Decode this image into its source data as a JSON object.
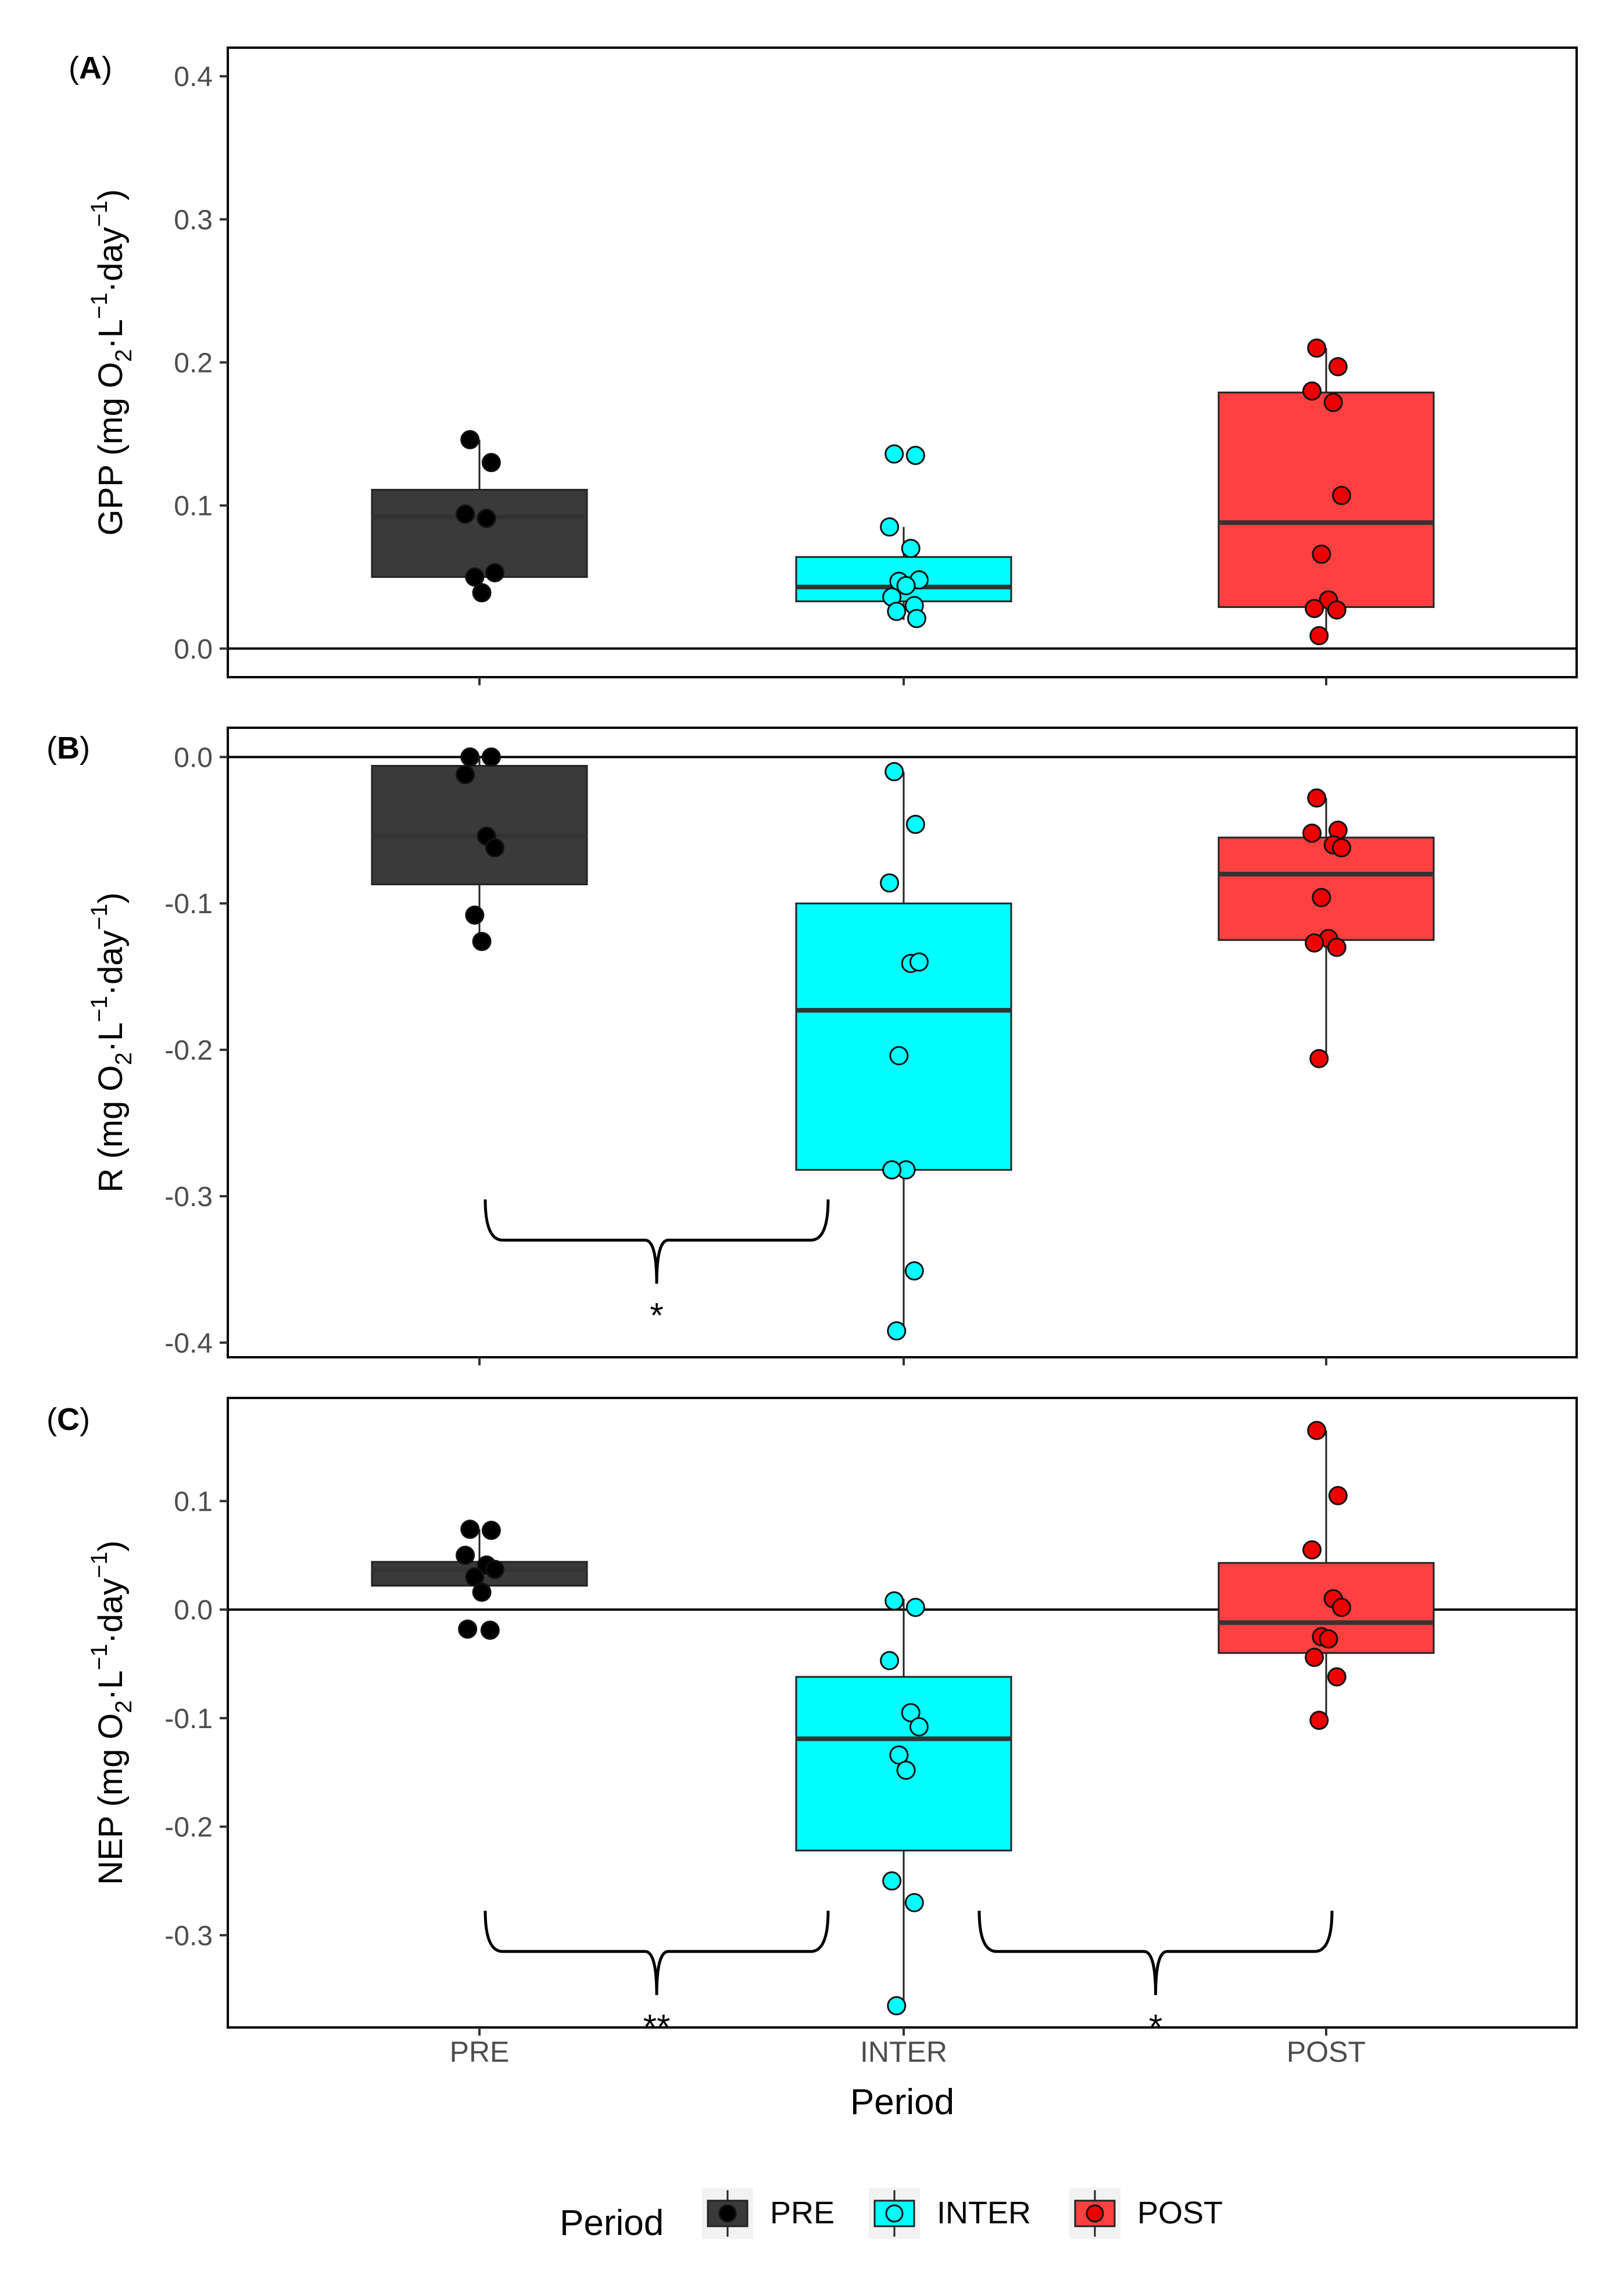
{
  "chart_data": [
    {
      "panel_label": "A",
      "type": "boxplot",
      "ylabel": "GPP (mg O₂·L⁻¹·day⁻¹)",
      "ylabel_parts": {
        "pre": "GPP (mg O",
        "sub": "2",
        "mid1": "·L",
        "sup1": "−1",
        "mid2": "·day",
        "sup2": "−1",
        "post": ")"
      },
      "ylim": [
        -0.02,
        0.42
      ],
      "yticks": [
        0.0,
        0.1,
        0.2,
        0.3,
        0.4
      ],
      "ytick_labels": [
        "0.0",
        "0.1",
        "0.2",
        "0.3",
        "0.4"
      ],
      "ref_line": 0,
      "categories": [
        "PRE",
        "INTER",
        "POST"
      ],
      "boxes": [
        {
          "group": "PRE",
          "q1": 0.05,
          "median": 0.092,
          "q3": 0.111,
          "whisker_low": 0.04,
          "whisker_high": 0.146
        },
        {
          "group": "INTER",
          "q1": 0.033,
          "median": 0.043,
          "q3": 0.064,
          "whisker_low": 0.02,
          "whisker_high": 0.085
        },
        {
          "group": "POST",
          "q1": 0.029,
          "median": 0.088,
          "q3": 0.179,
          "whisker_low": 0.009,
          "whisker_high": 0.21
        }
      ],
      "points": [
        {
          "group": "PRE",
          "y": [
            0.146,
            0.13,
            0.094,
            0.091,
            0.053,
            0.05,
            0.039
          ]
        },
        {
          "group": "INTER",
          "y": [
            0.136,
            0.135,
            0.085,
            0.07,
            0.048,
            0.047,
            0.044,
            0.036,
            0.03,
            0.026,
            0.021
          ]
        },
        {
          "group": "POST",
          "y": [
            0.21,
            0.197,
            0.18,
            0.172,
            0.107,
            0.066,
            0.034,
            0.028,
            0.027,
            0.009
          ]
        }
      ],
      "significance": []
    },
    {
      "panel_label": "B",
      "type": "boxplot",
      "ylabel": "R (mg O₂·L⁻¹·day⁻¹)",
      "ylabel_parts": {
        "pre": "R (mg O",
        "sub": "2",
        "mid1": "·L",
        "sup1": "−1",
        "mid2": "·day",
        "sup2": "−1",
        "post": ")"
      },
      "ylim": [
        -0.41,
        0.02
      ],
      "yticks": [
        0.0,
        -0.1,
        -0.2,
        -0.3,
        -0.4
      ],
      "ytick_labels": [
        "0.0",
        "-0.1",
        "-0.2",
        "-0.3",
        "-0.4"
      ],
      "ref_line": 0,
      "categories": [
        "PRE",
        "INTER",
        "POST"
      ],
      "boxes": [
        {
          "group": "PRE",
          "q1": -0.087,
          "median": -0.054,
          "q3": -0.006,
          "whisker_low": -0.127,
          "whisker_high": 0.0
        },
        {
          "group": "INTER",
          "q1": -0.282,
          "median": -0.173,
          "q3": -0.1,
          "whisker_low": -0.393,
          "whisker_high": -0.01
        },
        {
          "group": "POST",
          "q1": -0.125,
          "median": -0.08,
          "q3": -0.055,
          "whisker_low": -0.206,
          "whisker_high": -0.028
        }
      ],
      "points": [
        {
          "group": "PRE",
          "y": [
            0.0,
            0.0,
            -0.012,
            -0.054,
            -0.062,
            -0.108,
            -0.126
          ]
        },
        {
          "group": "INTER",
          "y": [
            -0.01,
            -0.046,
            -0.086,
            -0.141,
            -0.14,
            -0.204,
            -0.282,
            -0.282,
            -0.351,
            -0.392
          ]
        },
        {
          "group": "POST",
          "y": [
            -0.028,
            -0.05,
            -0.052,
            -0.06,
            -0.062,
            -0.096,
            -0.124,
            -0.127,
            -0.13,
            -0.206
          ]
        }
      ],
      "significance": [
        {
          "from": "PRE",
          "to": "INTER",
          "level": -0.33,
          "label": "*"
        }
      ]
    },
    {
      "panel_label": "C",
      "type": "boxplot",
      "ylabel": "NEP (mg O₂·L⁻¹·day⁻¹)",
      "ylabel_parts": {
        "pre": "NEP (mg O",
        "sub": "2",
        "mid1": "·L",
        "sup1": "−1",
        "mid2": "·day",
        "sup2": "−1",
        "post": ")"
      },
      "ylim": [
        -0.385,
        0.195
      ],
      "yticks": [
        0.1,
        0.0,
        -0.1,
        -0.2,
        -0.3
      ],
      "ytick_labels": [
        "0.1",
        "0.0",
        "-0.1",
        "-0.2",
        "-0.3"
      ],
      "ref_line": 0,
      "categories": [
        "PRE",
        "INTER",
        "POST"
      ],
      "boxes": [
        {
          "group": "PRE",
          "q1": 0.022,
          "median": 0.037,
          "q3": 0.044,
          "whisker_low": 0.016,
          "whisker_high": 0.074
        },
        {
          "group": "INTER",
          "q1": -0.222,
          "median": -0.119,
          "q3": -0.062,
          "whisker_low": -0.365,
          "whisker_high": 0.01
        },
        {
          "group": "POST",
          "q1": -0.04,
          "median": -0.012,
          "q3": 0.043,
          "whisker_low": -0.102,
          "whisker_high": 0.165
        }
      ],
      "points": [
        {
          "group": "PRE",
          "y": [
            0.074,
            0.073,
            0.05,
            0.041,
            0.037,
            0.03,
            0.016,
            -0.018,
            -0.019
          ]
        },
        {
          "group": "INTER",
          "y": [
            0.008,
            0.002,
            -0.047,
            -0.095,
            -0.108,
            -0.134,
            -0.148,
            -0.25,
            -0.27,
            -0.365
          ]
        },
        {
          "group": "POST",
          "y": [
            0.165,
            0.105,
            0.055,
            0.01,
            0.002,
            -0.025,
            -0.027,
            -0.044,
            -0.062,
            -0.102
          ]
        }
      ],
      "significance": [
        {
          "from": "PRE",
          "to": "INTER",
          "level": -0.315,
          "label": "**"
        },
        {
          "from": "INTER",
          "to": "POST",
          "level": -0.315,
          "label": "*"
        }
      ]
    }
  ],
  "xlabel": "Period",
  "xtick_labels": [
    "PRE",
    "INTER",
    "POST"
  ],
  "legend": {
    "title": "Period",
    "placement": "bottom",
    "items": [
      {
        "label": "PRE",
        "fill": "#3a3a3a",
        "point": "#000000"
      },
      {
        "label": "INTER",
        "fill": "#00ffff",
        "point": "#00ffff"
      },
      {
        "label": "POST",
        "fill": "#ff4040",
        "point": "#ee0000"
      }
    ]
  },
  "colors": {
    "PRE": {
      "box": "#3a3a3a",
      "point": "#000000"
    },
    "INTER": {
      "box": "#00ffff",
      "point": "#00ffff"
    },
    "POST": {
      "box": "#ff4040",
      "point": "#ee0000"
    }
  }
}
